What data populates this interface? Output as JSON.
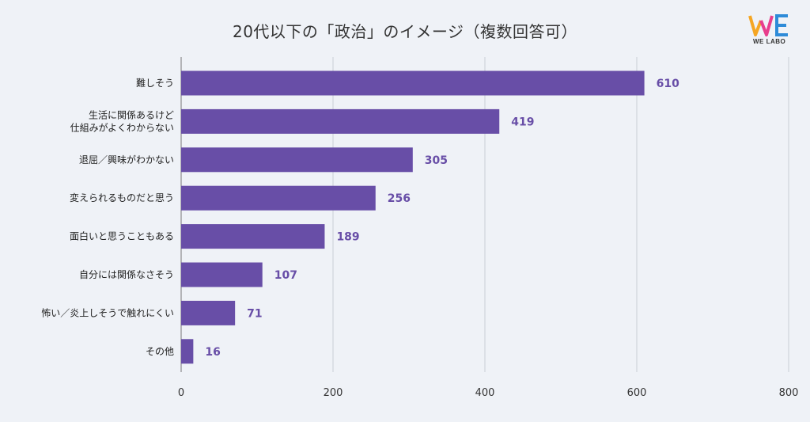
{
  "title": "20代以下の「政治」のイメージ（複数回答可）",
  "logo": {
    "text": "WE LABO",
    "colors": [
      "#f5a623",
      "#e83e8c",
      "#2e8bd8",
      "#6a4ca5"
    ]
  },
  "colors": {
    "bar": "#684ea7",
    "value_label": "#684ea7",
    "grid": "#c9cdd4",
    "background": "#eff2f7"
  },
  "chart_data": {
    "type": "bar",
    "orientation": "horizontal",
    "categories": [
      [
        "難しそう"
      ],
      [
        "生活に関係あるけど",
        "仕組みがよくわからない"
      ],
      [
        "退屈／興味がわかない"
      ],
      [
        "変えられるものだと思う"
      ],
      [
        "面白いと思うこともある"
      ],
      [
        "自分には関係なさそう"
      ],
      [
        "怖い／炎上しそうで触れにくい"
      ],
      [
        "その他"
      ]
    ],
    "values": [
      610,
      419,
      305,
      256,
      189,
      107,
      71,
      16
    ],
    "xlim": [
      0,
      800
    ],
    "xticks": [
      0,
      200,
      400,
      600,
      800
    ],
    "grid": true,
    "data_labels": true,
    "xlabel": "",
    "ylabel": ""
  }
}
